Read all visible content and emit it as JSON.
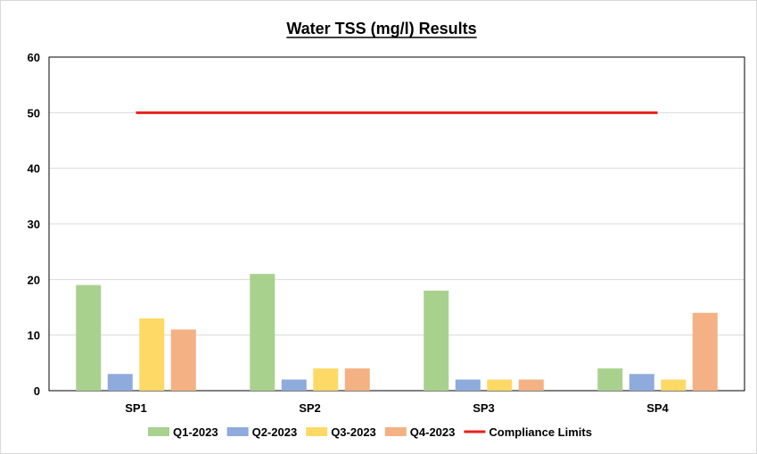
{
  "chart_data": {
    "type": "bar",
    "title": "Water TSS (mg/l) Results",
    "xlabel": "",
    "ylabel": "",
    "categories": [
      "SP1",
      "SP2",
      "SP3",
      "SP4"
    ],
    "series": [
      {
        "name": "Q1-2023",
        "values": [
          19,
          21,
          18,
          4
        ],
        "color": "#a9d18e"
      },
      {
        "name": "Q2-2023",
        "values": [
          3,
          2,
          2,
          3
        ],
        "color": "#8faadc"
      },
      {
        "name": "Q3-2023",
        "values": [
          13,
          4,
          2,
          2
        ],
        "color": "#ffd966"
      },
      {
        "name": "Q4-2023",
        "values": [
          11,
          4,
          2,
          14
        ],
        "color": "#f4b183"
      }
    ],
    "reference_line": {
      "name": "Compliance Limits",
      "value": 50,
      "color": "#e8211b"
    },
    "ylim": [
      0,
      60
    ],
    "yticks": [
      "0",
      "10",
      "20",
      "30",
      "40",
      "50",
      "60"
    ],
    "grid": true,
    "legend_position": "bottom"
  }
}
